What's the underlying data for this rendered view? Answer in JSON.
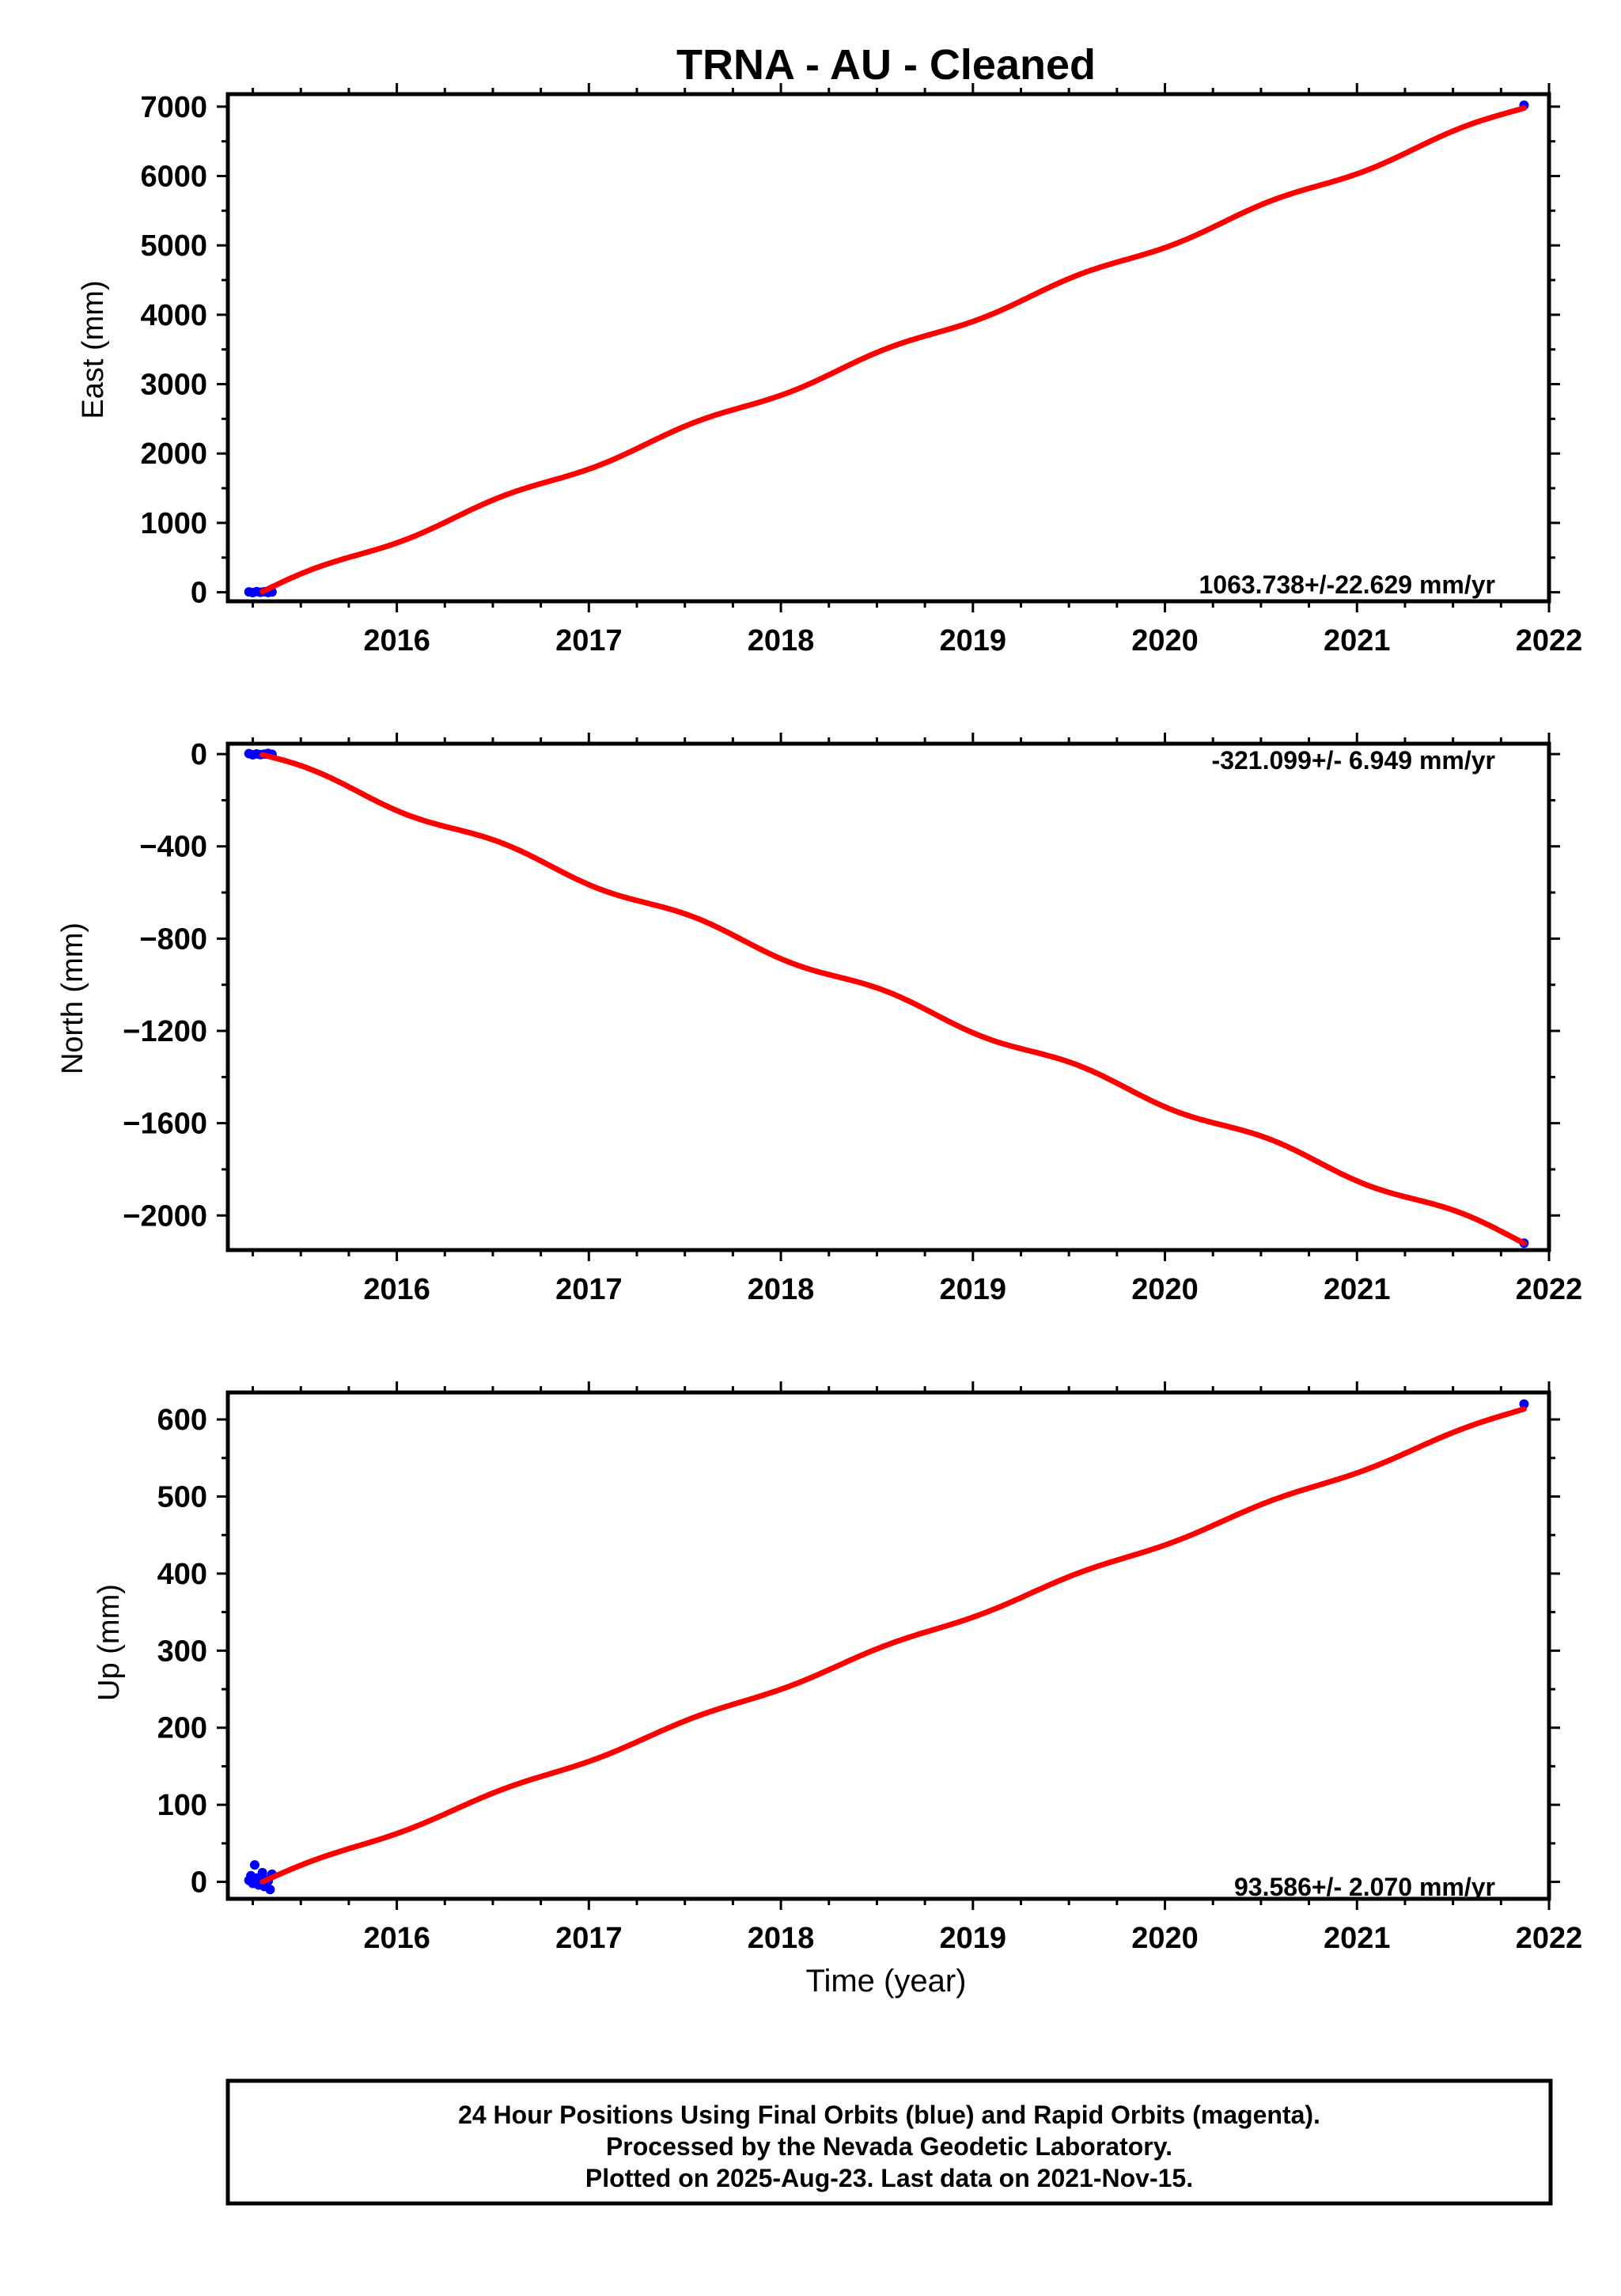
{
  "title": "TRNA  - AU - Cleaned",
  "colors": {
    "final_orbits": "#0000ff",
    "rapid_orbits": "#ff00ff",
    "model_fit": "#ff0000",
    "frame": "#000000"
  },
  "x_axis": {
    "label": "Time (year)",
    "ticks": [
      "2016",
      "2017",
      "2018",
      "2019",
      "2020",
      "2021",
      "2022"
    ],
    "range": [
      2015.12,
      2022.0
    ]
  },
  "chart_data": [
    {
      "type": "line",
      "component": "east",
      "ylabel": "East (mm)",
      "yticks": [
        "0",
        "1000",
        "2000",
        "3000",
        "4000",
        "5000",
        "6000",
        "7000"
      ],
      "ylim": [
        -130,
        7180
      ],
      "rate_label": "1063.738+/-22.629 mm/yr",
      "rate_position": "bottom-right",
      "fit": {
        "rate": 1063.738,
        "t0": 2015.3,
        "y0": 10,
        "seasonal_amplitude": 45
      },
      "fit_range": [
        2015.3,
        2021.87
      ],
      "points": {
        "x": [
          2015.23,
          2015.25,
          2015.27,
          2015.29,
          2015.31,
          2015.33,
          2015.35,
          2021.87
        ],
        "y": [
          5,
          -5,
          10,
          0,
          8,
          -3,
          4,
          7020
        ]
      }
    },
    {
      "type": "line",
      "component": "north",
      "ylabel": "North (mm)",
      "yticks": [
        "0",
        "−400",
        "−800",
        "−1200",
        "−1600",
        "−2000"
      ],
      "ylim": [
        -2150,
        45
      ],
      "rate_label": "-321.099+/- 6.949 mm/yr",
      "rate_position": "top-right",
      "fit": {
        "rate": -321.099,
        "t0": 2015.3,
        "y0": -3,
        "seasonal_amplitude": 18
      },
      "fit_range": [
        2015.3,
        2021.87
      ],
      "points": {
        "x": [
          2015.23,
          2015.25,
          2015.27,
          2015.29,
          2015.31,
          2015.33,
          2015.35,
          2021.87
        ],
        "y": [
          2,
          -3,
          1,
          -2,
          0,
          3,
          -1,
          -2120
        ]
      }
    },
    {
      "type": "line",
      "component": "up",
      "ylabel": "Up (mm)",
      "yticks": [
        "0",
        "100",
        "200",
        "300",
        "400",
        "500",
        "600"
      ],
      "ylim": [
        -22,
        635
      ],
      "rate_label": "93.586+/- 2.070 mm/yr",
      "rate_position": "bottom-right",
      "fit": {
        "rate": 93.586,
        "t0": 2015.3,
        "y0": 0,
        "seasonal_amplitude": 3
      },
      "fit_range": [
        2015.3,
        2021.87
      ],
      "points": {
        "x": [
          2015.23,
          2015.24,
          2015.25,
          2015.26,
          2015.27,
          2015.28,
          2015.29,
          2015.3,
          2015.31,
          2015.32,
          2015.33,
          2015.34,
          2015.35,
          2021.87
        ],
        "y": [
          2,
          8,
          -2,
          22,
          5,
          -4,
          0,
          12,
          -6,
          3,
          1,
          -10,
          10,
          620
        ]
      }
    }
  ],
  "footer": {
    "line1": "24 Hour Positions Using Final Orbits (blue) and Rapid Orbits (magenta).",
    "line2": "Processed by the Nevada Geodetic Laboratory.",
    "line3": "Plotted on 2025-Aug-23. Last data on 2021-Nov-15."
  }
}
